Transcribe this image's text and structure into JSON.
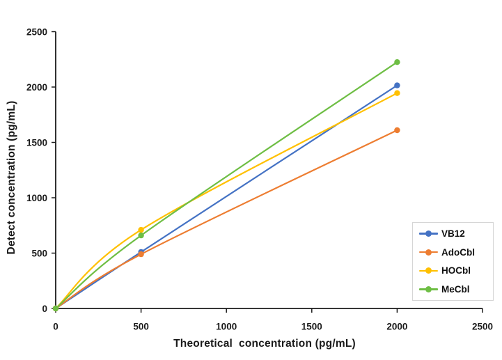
{
  "chart_data": {
    "type": "line",
    "smooth": true,
    "x": [
      0,
      500,
      2000
    ],
    "series": [
      {
        "name": "VB12",
        "color": "#4472C4",
        "values": [
          0,
          510,
          2015
        ]
      },
      {
        "name": "AdoCbl",
        "color": "#ED7D31",
        "values": [
          0,
          490,
          1610
        ]
      },
      {
        "name": "HOCbl",
        "color": "#FFC000",
        "values": [
          0,
          710,
          1945
        ]
      },
      {
        "name": "MeCbl",
        "color": "#6EBE44",
        "values": [
          0,
          660,
          2225
        ]
      }
    ],
    "title": "",
    "xlabel": "Theoretical  concentration (pg/mL)",
    "ylabel": "Detect concentration (pg/mL)",
    "xlim": [
      0,
      2500
    ],
    "ylim": [
      0,
      2500
    ],
    "x_ticks": [
      0,
      500,
      1000,
      1500,
      2000,
      2500
    ],
    "y_ticks": [
      0,
      500,
      1000,
      1500,
      2000,
      2500
    ],
    "grid": false,
    "legend_position": "right-middle",
    "axis_color": "#1a1a1a",
    "background": "#ffffff"
  },
  "legend": {
    "items": [
      {
        "label": "VB12",
        "color": "#4472C4"
      },
      {
        "label": "AdoCbl",
        "color": "#ED7D31"
      },
      {
        "label": "HOCbl",
        "color": "#FFC000"
      },
      {
        "label": "MeCbl",
        "color": "#6EBE44"
      }
    ]
  }
}
